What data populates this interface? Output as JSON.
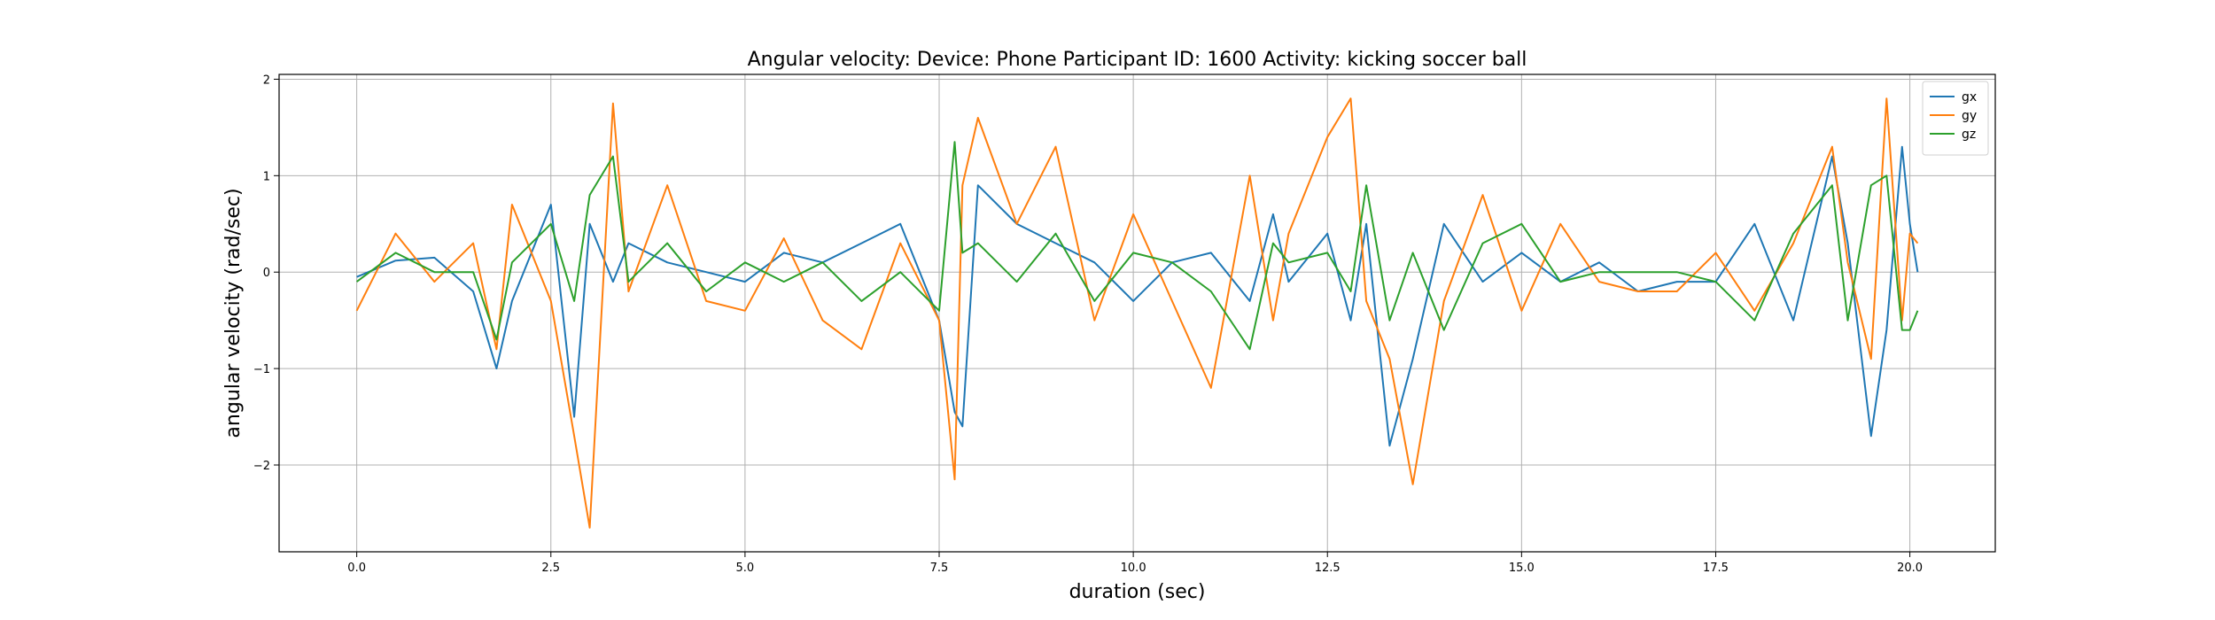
{
  "chart_data": {
    "type": "line",
    "title": "Angular velocity:  Device: Phone     Participant ID: 1600      Activity:  kicking soccer ball",
    "xlabel": "duration  (sec)",
    "ylabel": "angular velocity  (rad/sec)",
    "xlim": [
      -1.0,
      21.1
    ],
    "ylim": [
      -2.9,
      2.05
    ],
    "xticks": [
      0.0,
      2.5,
      5.0,
      7.5,
      10.0,
      12.5,
      15.0,
      17.5,
      20.0
    ],
    "xtick_labels": [
      "0.0",
      "2.5",
      "5.0",
      "7.5",
      "10.0",
      "12.5",
      "15.0",
      "17.5",
      "20.0"
    ],
    "yticks": [
      -2,
      -1,
      0,
      1,
      2
    ],
    "ytick_labels": [
      "−2",
      "−1",
      "0",
      "1",
      "2"
    ],
    "grid": true,
    "legend_position": "top-right",
    "x": [
      0.0,
      0.5,
      1.0,
      1.5,
      1.8,
      2.0,
      2.5,
      2.8,
      3.0,
      3.3,
      3.5,
      4.0,
      4.5,
      5.0,
      5.5,
      6.0,
      6.5,
      7.0,
      7.5,
      7.7,
      7.8,
      8.0,
      8.5,
      9.0,
      9.5,
      10.0,
      10.5,
      11.0,
      11.5,
      11.8,
      12.0,
      12.5,
      12.8,
      13.0,
      13.3,
      13.6,
      14.0,
      14.5,
      15.0,
      15.5,
      16.0,
      16.5,
      17.0,
      17.5,
      18.0,
      18.5,
      19.0,
      19.2,
      19.5,
      19.7,
      19.9,
      20.0,
      20.1
    ],
    "series": [
      {
        "name": "gx",
        "color": "#1f77b4",
        "values": [
          -0.05,
          0.12,
          0.15,
          -0.2,
          -1.0,
          -0.3,
          0.7,
          -1.5,
          0.5,
          -0.1,
          0.3,
          0.1,
          0.0,
          -0.1,
          0.2,
          0.1,
          0.3,
          0.5,
          -0.5,
          -1.45,
          -1.6,
          0.9,
          0.5,
          0.3,
          0.1,
          -0.3,
          0.1,
          0.2,
          -0.3,
          0.6,
          -0.1,
          0.4,
          -0.5,
          0.5,
          -1.8,
          -0.9,
          0.5,
          -0.1,
          0.2,
          -0.1,
          0.1,
          -0.2,
          -0.1,
          -0.1,
          0.5,
          -0.5,
          1.2,
          0.3,
          -1.7,
          -0.6,
          1.3,
          0.5,
          0.0
        ]
      },
      {
        "name": "gy",
        "color": "#ff7f0e",
        "values": [
          -0.4,
          0.4,
          -0.1,
          0.3,
          -0.8,
          0.7,
          -0.3,
          -1.7,
          -2.65,
          1.75,
          -0.2,
          0.9,
          -0.3,
          -0.4,
          0.35,
          -0.5,
          -0.8,
          0.3,
          -0.5,
          -2.15,
          0.9,
          1.6,
          0.5,
          1.3,
          -0.5,
          0.6,
          -0.3,
          -1.2,
          1.0,
          -0.5,
          0.4,
          1.4,
          1.8,
          -0.3,
          -0.9,
          -2.2,
          -0.3,
          0.8,
          -0.4,
          0.5,
          -0.1,
          -0.2,
          -0.2,
          0.2,
          -0.4,
          0.3,
          1.3,
          0.1,
          -0.9,
          1.8,
          -0.5,
          0.4,
          0.3
        ]
      },
      {
        "name": "gz",
        "color": "#2ca02c",
        "values": [
          -0.1,
          0.2,
          0.0,
          0.0,
          -0.7,
          0.1,
          0.5,
          -0.3,
          0.8,
          1.2,
          -0.1,
          0.3,
          -0.2,
          0.1,
          -0.1,
          0.1,
          -0.3,
          0.0,
          -0.4,
          1.35,
          0.2,
          0.3,
          -0.1,
          0.4,
          -0.3,
          0.2,
          0.1,
          -0.2,
          -0.8,
          0.3,
          0.1,
          0.2,
          -0.2,
          0.9,
          -0.5,
          0.2,
          -0.6,
          0.3,
          0.5,
          -0.1,
          0.0,
          0.0,
          0.0,
          -0.1,
          -0.5,
          0.4,
          0.9,
          -0.5,
          0.9,
          1.0,
          -0.6,
          -0.6,
          -0.4
        ]
      }
    ]
  }
}
